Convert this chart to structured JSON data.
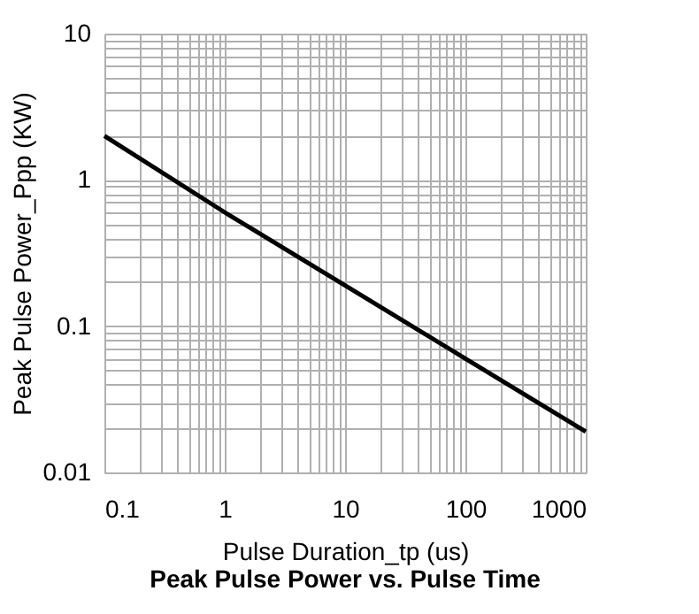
{
  "chart_data": {
    "type": "line",
    "title": "Peak Pulse Power vs. Pulse Time",
    "xlabel": "Pulse Duration_tp (us)",
    "ylabel": "Peak Pulse Power_Ppp (KW)",
    "x": [
      0.1,
      1,
      10,
      100,
      1000
    ],
    "series": [
      {
        "color": "#000000",
        "values": [
          2.0,
          0.6,
          0.19,
          0.06,
          0.019
        ]
      }
    ],
    "log": "xy",
    "xlim": [
      0.1,
      1000
    ],
    "ylim": [
      0.01,
      10
    ],
    "xticks": [
      0.1,
      1,
      10,
      100,
      1000
    ],
    "yticks": [
      0.01,
      0.1,
      1,
      10
    ],
    "grid": true,
    "marker": "none",
    "line_style": "solid",
    "legend": false
  }
}
